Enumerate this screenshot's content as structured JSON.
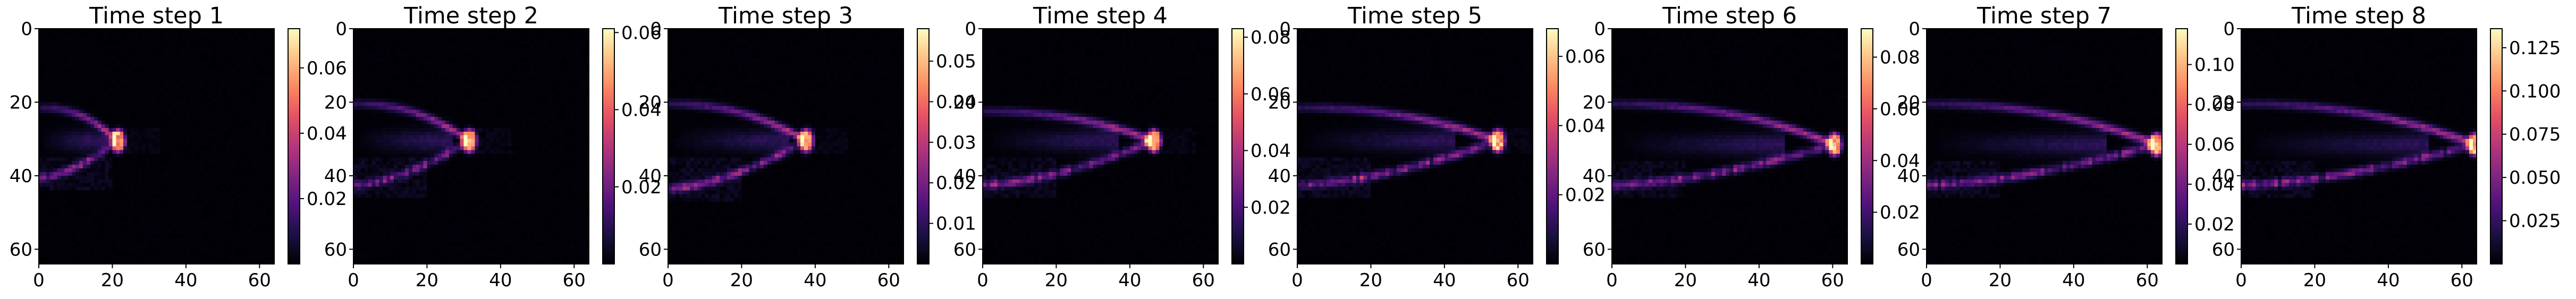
{
  "chart_data": [
    {
      "type": "heatmap",
      "title": "Time step 1",
      "xticks": [
        "0",
        "20",
        "40",
        "60"
      ],
      "yticks": [
        "0",
        "20",
        "40",
        "60"
      ],
      "xlim": [
        0,
        64
      ],
      "ylim": [
        64,
        0
      ],
      "colormap": "magma",
      "colorbar": {
        "vmin": 0.0,
        "vmax": 0.072,
        "ticks": [
          0.02,
          0.04,
          0.06
        ],
        "tick_labels": [
          "0.02",
          "0.04",
          "0.06"
        ]
      },
      "plume": {
        "front_x": 21,
        "inner_x": 12,
        "y_top": 21,
        "y_bottom": 40,
        "center_y": 30
      }
    },
    {
      "type": "heatmap",
      "title": "Time step 2",
      "xticks": [
        "0",
        "20",
        "40",
        "60"
      ],
      "yticks": [
        "0",
        "20",
        "40",
        "60"
      ],
      "xlim": [
        0,
        64
      ],
      "ylim": [
        64,
        0
      ],
      "colormap": "magma",
      "colorbar": {
        "vmin": 0.0,
        "vmax": 0.061,
        "ticks": [
          0.02,
          0.04,
          0.06
        ],
        "tick_labels": [
          "0.02",
          "0.04",
          "0.06"
        ]
      },
      "plume": {
        "front_x": 31,
        "inner_x": 20,
        "y_top": 20,
        "y_bottom": 42,
        "center_y": 30
      }
    },
    {
      "type": "heatmap",
      "title": "Time step 3",
      "xticks": [
        "0",
        "20",
        "40",
        "60"
      ],
      "yticks": [
        "0",
        "20",
        "40",
        "60"
      ],
      "xlim": [
        0,
        64
      ],
      "ylim": [
        64,
        0
      ],
      "colormap": "magma",
      "colorbar": {
        "vmin": 0.0,
        "vmax": 0.058,
        "ticks": [
          0.01,
          0.02,
          0.03,
          0.04,
          0.05
        ],
        "tick_labels": [
          "0.01",
          "0.02",
          "0.03",
          "0.04",
          "0.05"
        ]
      },
      "plume": {
        "front_x": 37,
        "inner_x": 26,
        "y_top": 20,
        "y_bottom": 43,
        "center_y": 30
      }
    },
    {
      "type": "heatmap",
      "title": "Time step 4",
      "xticks": [
        "0",
        "20",
        "40",
        "60"
      ],
      "yticks": [
        "0",
        "20",
        "40",
        "60"
      ],
      "xlim": [
        0,
        64
      ],
      "ylim": [
        64,
        0
      ],
      "colormap": "magma",
      "colorbar": {
        "vmin": 0.0,
        "vmax": 0.083,
        "ticks": [
          0.02,
          0.04,
          0.06,
          0.08
        ],
        "tick_labels": [
          "0.02",
          "0.04",
          "0.06",
          "0.08"
        ]
      },
      "plume": {
        "front_x": 46,
        "inner_x": 30,
        "y_top": 22,
        "y_bottom": 42,
        "center_y": 30
      }
    },
    {
      "type": "heatmap",
      "title": "Time step 5",
      "xticks": [
        "0",
        "20",
        "40",
        "60"
      ],
      "yticks": [
        "0",
        "20",
        "40",
        "60"
      ],
      "xlim": [
        0,
        64
      ],
      "ylim": [
        64,
        0
      ],
      "colormap": "magma",
      "colorbar": {
        "vmin": 0.0,
        "vmax": 0.068,
        "ticks": [
          0.02,
          0.04,
          0.06
        ],
        "tick_labels": [
          "0.02",
          "0.04",
          "0.06"
        ]
      },
      "plume": {
        "front_x": 54,
        "inner_x": 36,
        "y_top": 21,
        "y_bottom": 42,
        "center_y": 30
      }
    },
    {
      "type": "heatmap",
      "title": "Time step 6",
      "xticks": [
        "0",
        "20",
        "40",
        "60"
      ],
      "yticks": [
        "0",
        "20",
        "40",
        "60"
      ],
      "xlim": [
        0,
        64
      ],
      "ylim": [
        64,
        0
      ],
      "colormap": "magma",
      "colorbar": {
        "vmin": 0.0,
        "vmax": 0.091,
        "ticks": [
          0.02,
          0.04,
          0.06,
          0.08
        ],
        "tick_labels": [
          "0.02",
          "0.04",
          "0.06",
          "0.08"
        ]
      },
      "plume": {
        "front_x": 60,
        "inner_x": 40,
        "y_top": 20,
        "y_bottom": 42,
        "center_y": 31
      }
    },
    {
      "type": "heatmap",
      "title": "Time step 7",
      "xticks": [
        "0",
        "20",
        "40",
        "60"
      ],
      "yticks": [
        "0",
        "20",
        "40",
        "60"
      ],
      "xlim": [
        0,
        64
      ],
      "ylim": [
        64,
        0
      ],
      "colormap": "magma",
      "colorbar": {
        "vmin": 0.0,
        "vmax": 0.118,
        "ticks": [
          0.02,
          0.04,
          0.06,
          0.08,
          0.1
        ],
        "tick_labels": [
          "0.02",
          "0.04",
          "0.06",
          "0.08",
          "0.10"
        ]
      },
      "plume": {
        "front_x": 62,
        "inner_x": 42,
        "y_top": 20,
        "y_bottom": 42,
        "center_y": 31
      }
    },
    {
      "type": "heatmap",
      "title": "Time step 8",
      "xticks": [
        "0",
        "20",
        "40",
        "60"
      ],
      "yticks": [
        "0",
        "20",
        "40",
        "60"
      ],
      "xlim": [
        0,
        64
      ],
      "ylim": [
        64,
        0
      ],
      "colormap": "magma",
      "colorbar": {
        "vmin": 0.0,
        "vmax": 0.136,
        "ticks": [
          0.025,
          0.05,
          0.075,
          0.1,
          0.125
        ],
        "tick_labels": [
          "0.025",
          "0.050",
          "0.075",
          "0.100",
          "0.125"
        ]
      },
      "plume": {
        "front_x": 63,
        "inner_x": 44,
        "y_top": 20,
        "y_bottom": 42,
        "center_y": 31
      }
    }
  ]
}
